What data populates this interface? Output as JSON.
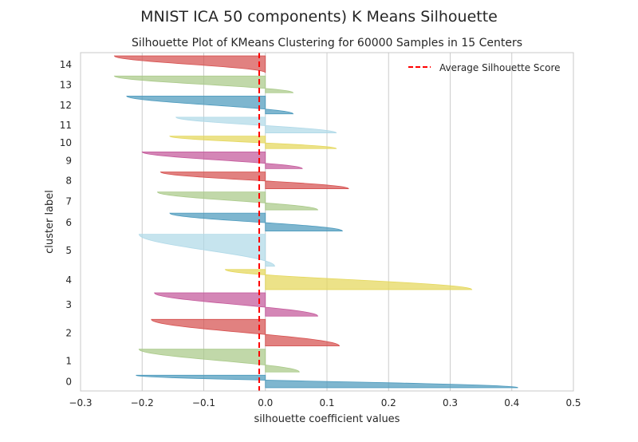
{
  "suptitle": "MNIST ICA 50 components) K Means Silhouette",
  "colors": {
    "background": "#ffffff",
    "grid": "#cccccc",
    "spine": "#c8c8c8",
    "text": "#262626",
    "avg_line": "#ff0000",
    "palette": [
      "#4c9abd",
      "#a9c988",
      "#d6504f",
      "#c4589a",
      "#b0d9e8",
      "#e4d75a"
    ]
  },
  "chart_data": {
    "type": "area",
    "title": "Silhouette Plot of KMeans Clustering for 60000 Samples in 15 Centers",
    "xlabel": "silhouette coefficient values",
    "ylabel": "cluster label",
    "xlim": [
      -0.3,
      0.5
    ],
    "xticks": [
      "−0.3",
      "−0.2",
      "−0.1",
      "0.0",
      "0.1",
      "0.2",
      "0.3",
      "0.4",
      "0.5"
    ],
    "xtick_values": [
      -0.3,
      -0.2,
      -0.1,
      0.0,
      0.1,
      0.2,
      0.3,
      0.4,
      0.5
    ],
    "grid": true,
    "legend": {
      "position": "top-right",
      "entries": [
        "Average Silhouette Score"
      ]
    },
    "average_silhouette": -0.01,
    "clusters": [
      {
        "label": "0",
        "color": "#4c9abd",
        "size": 2.3,
        "max": 0.41,
        "min": -0.21
      },
      {
        "label": "1",
        "color": "#a9c988",
        "size": 4.2,
        "max": 0.055,
        "min": -0.205
      },
      {
        "label": "2",
        "color": "#d6504f",
        "size": 4.9,
        "max": 0.12,
        "min": -0.185
      },
      {
        "label": "3",
        "color": "#c4589a",
        "size": 4.3,
        "max": 0.085,
        "min": -0.18
      },
      {
        "label": "4",
        "color": "#e4d75a",
        "size": 3.7,
        "max": 0.335,
        "min": -0.065
      },
      {
        "label": "5",
        "color": "#b0d9e8",
        "size": 5.9,
        "max": 0.015,
        "min": -0.205
      },
      {
        "label": "6",
        "color": "#4c9abd",
        "size": 3.3,
        "max": 0.125,
        "min": -0.155
      },
      {
        "label": "7",
        "color": "#a9c988",
        "size": 3.3,
        "max": 0.085,
        "min": -0.175
      },
      {
        "label": "8",
        "color": "#d6504f",
        "size": 3.1,
        "max": 0.135,
        "min": -0.17
      },
      {
        "label": "9",
        "color": "#c4589a",
        "size": 3.1,
        "max": 0.06,
        "min": -0.2
      },
      {
        "label": "10",
        "color": "#e4d75a",
        "size": 2.3,
        "max": 0.115,
        "min": -0.155
      },
      {
        "label": "11",
        "color": "#b0d9e8",
        "size": 2.9,
        "max": 0.115,
        "min": -0.145
      },
      {
        "label": "12",
        "color": "#4c9abd",
        "size": 3.3,
        "max": 0.045,
        "min": -0.225
      },
      {
        "label": "13",
        "color": "#a9c988",
        "size": 3.1,
        "max": 0.045,
        "min": -0.245
      },
      {
        "label": "14",
        "color": "#d6504f",
        "size": 3.1,
        "max": 0.0,
        "min": -0.245
      }
    ]
  }
}
